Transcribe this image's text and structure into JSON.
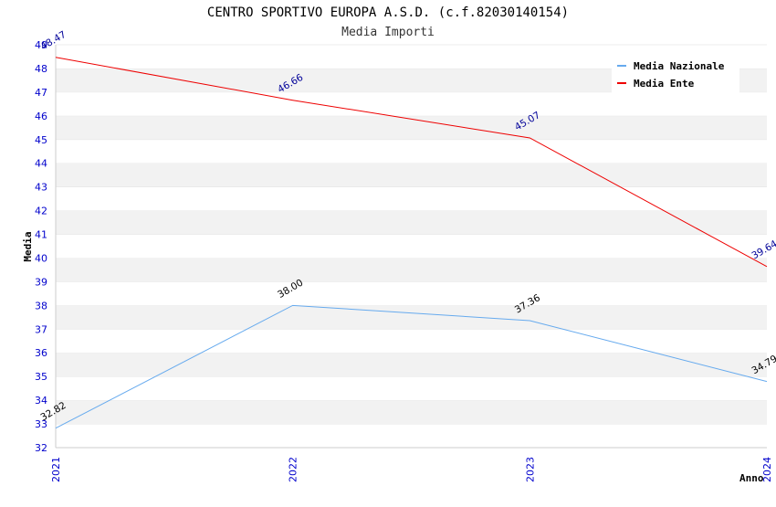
{
  "chart_data": {
    "type": "line",
    "title": "CENTRO SPORTIVO EUROPA A.S.D. (c.f.82030140154)",
    "subtitle": "Media Importi",
    "xlabel": "Anno",
    "ylabel": "Media",
    "categories": [
      "2021",
      "2022",
      "2023",
      "2024"
    ],
    "ylim": [
      32,
      49
    ],
    "yticks": [
      "32",
      "33",
      "34",
      "35",
      "36",
      "37",
      "38",
      "39",
      "40",
      "41",
      "42",
      "43",
      "44",
      "45",
      "46",
      "47",
      "48",
      "49"
    ],
    "grid": "horizontal bands",
    "legend_position": "top-right",
    "series": [
      {
        "name": "Media Nazionale",
        "values": [
          32.82,
          38.0,
          37.36,
          34.79
        ],
        "labels": [
          "32.82",
          "38.00",
          "37.36",
          "34.79"
        ],
        "color": "#66aaee",
        "label_color": "#000000"
      },
      {
        "name": "Media Ente",
        "values": [
          48.47,
          46.66,
          45.07,
          39.64
        ],
        "labels": [
          "48.47",
          "46.66",
          "45.07",
          "39.64"
        ],
        "color": "#ee0000",
        "label_color": "#000099"
      }
    ]
  }
}
